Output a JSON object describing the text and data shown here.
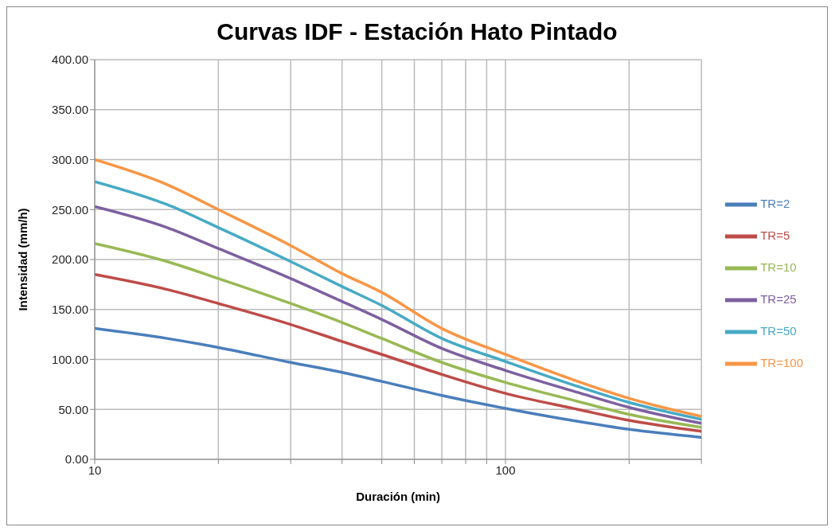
{
  "chart_data": {
    "type": "line",
    "title": "Curvas IDF - Estación Hato Pintado",
    "xlabel": "Duración (min)",
    "ylabel": "Intensidad (mm/h)",
    "x": [
      10,
      15,
      20,
      30,
      40,
      50,
      70,
      100,
      150,
      200,
      300
    ],
    "series": [
      {
        "name": "TR=2",
        "color": "#4a7ebb",
        "values": [
          131,
          121,
          112,
          97,
          87,
          78,
          64,
          51,
          38,
          30,
          22
        ]
      },
      {
        "name": "TR=5",
        "color": "#be4b48",
        "values": [
          185,
          170,
          156,
          135,
          118,
          105,
          85,
          66,
          50,
          39,
          28
        ]
      },
      {
        "name": "TR=10",
        "color": "#98b954",
        "values": [
          216,
          198,
          181,
          156,
          137,
          121,
          97,
          77,
          58,
          45,
          32
        ]
      },
      {
        "name": "TR=25",
        "color": "#7d60a0",
        "values": [
          253,
          232,
          211,
          181,
          158,
          140,
          111,
          89,
          67,
          52,
          36
        ]
      },
      {
        "name": "TR=50",
        "color": "#46aac5",
        "values": [
          278,
          255,
          232,
          198,
          173,
          154,
          121,
          98,
          73,
          57,
          40
        ]
      },
      {
        "name": "TR=100",
        "color": "#f79646",
        "values": [
          300,
          275,
          250,
          214,
          186,
          167,
          131,
          105,
          78,
          61,
          43
        ]
      }
    ],
    "log": "x",
    "xlim": [
      10,
      300
    ],
    "xticks": [
      10,
      {
        "value": 20,
        "label": null
      },
      {
        "value": 30,
        "label": null
      },
      {
        "value": 40,
        "label": null
      },
      {
        "value": 50,
        "label": null
      },
      {
        "value": 60,
        "label": null
      },
      {
        "value": 70,
        "label": null
      },
      {
        "value": 80,
        "label": null
      },
      {
        "value": 90,
        "label": null
      },
      100,
      {
        "value": 200,
        "label": null
      },
      {
        "value": 300,
        "label": null
      }
    ],
    "ylim": [
      0,
      400
    ],
    "yticks": [
      {
        "value": 0,
        "label": "0.00"
      },
      {
        "value": 50,
        "label": "50.00"
      },
      {
        "value": 100,
        "label": "100.00"
      },
      {
        "value": 150,
        "label": "150.00"
      },
      {
        "value": 200,
        "label": "200.00"
      },
      {
        "value": 250,
        "label": "250.00"
      },
      {
        "value": 300,
        "label": "300.00"
      },
      {
        "value": 350,
        "label": "350.00"
      },
      {
        "value": 400,
        "label": "400.00"
      }
    ],
    "grid": true,
    "legend": "right",
    "marker": "none",
    "line_style": "solid"
  }
}
